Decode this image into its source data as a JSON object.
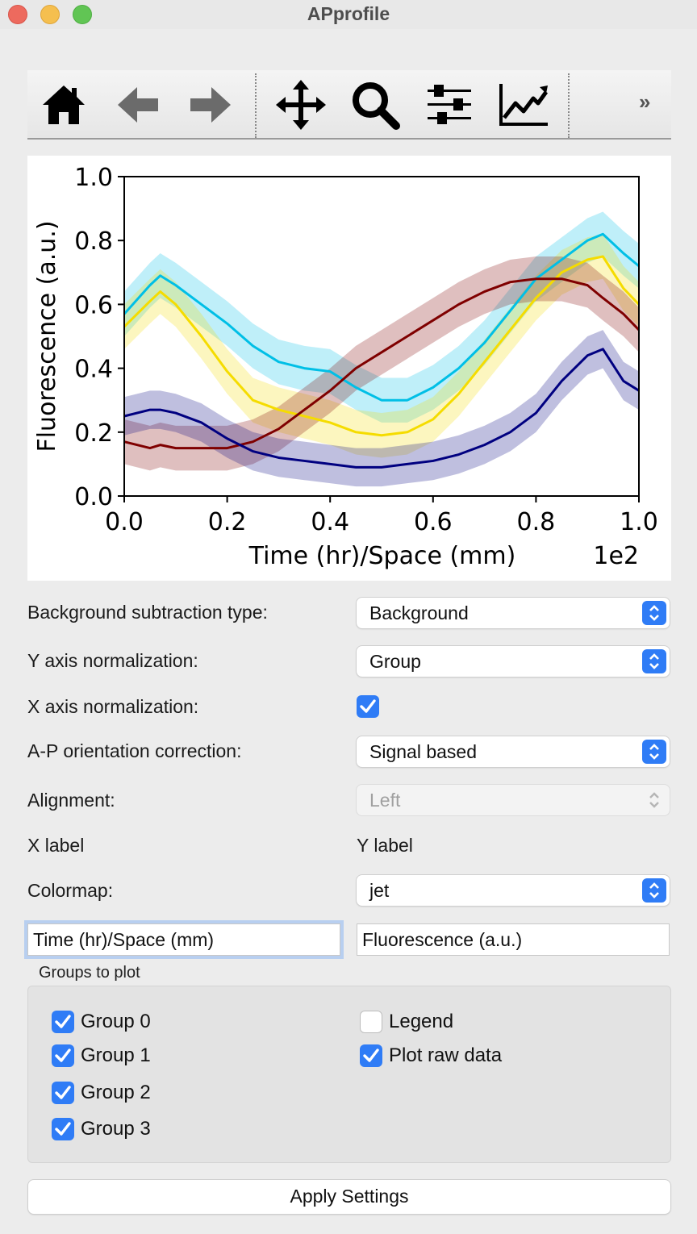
{
  "window": {
    "title": "APprofile"
  },
  "toolbar": {
    "buttons": [
      "home-icon",
      "back-arrow-icon",
      "forward-arrow-icon",
      "pan-icon",
      "zoom-icon",
      "configure-subplots-icon",
      "edit-axes-icon"
    ],
    "more_label": "»"
  },
  "chart_data": {
    "type": "line",
    "xlabel": "Time (hr)/Space (mm)",
    "ylabel": "Fluorescence (a.u.)",
    "x_offset_text": "1e2",
    "xlim": [
      0.0,
      1.0
    ],
    "ylim": [
      0.0,
      1.0
    ],
    "xticks": [
      "0.0",
      "0.2",
      "0.4",
      "0.6",
      "0.8",
      "1.0"
    ],
    "yticks": [
      "0.0",
      "0.2",
      "0.4",
      "0.6",
      "0.8",
      "1.0"
    ],
    "grid": false,
    "legend": false,
    "x": [
      0.0,
      0.05,
      0.07,
      0.1,
      0.15,
      0.2,
      0.25,
      0.3,
      0.35,
      0.4,
      0.45,
      0.5,
      0.55,
      0.6,
      0.65,
      0.7,
      0.75,
      0.8,
      0.85,
      0.9,
      0.93,
      0.97,
      1.0
    ],
    "series": [
      {
        "color": "#00bfe6",
        "band": 0.07,
        "values": [
          0.57,
          0.66,
          0.69,
          0.66,
          0.6,
          0.54,
          0.47,
          0.42,
          0.4,
          0.39,
          0.34,
          0.3,
          0.3,
          0.34,
          0.4,
          0.48,
          0.58,
          0.68,
          0.74,
          0.8,
          0.82,
          0.76,
          0.72
        ]
      },
      {
        "color": "#f5dc00",
        "band": 0.07,
        "values": [
          0.53,
          0.61,
          0.64,
          0.6,
          0.5,
          0.39,
          0.3,
          0.27,
          0.25,
          0.23,
          0.2,
          0.19,
          0.2,
          0.24,
          0.32,
          0.42,
          0.52,
          0.62,
          0.7,
          0.74,
          0.75,
          0.65,
          0.6
        ]
      },
      {
        "color": "#7f0000",
        "band": 0.07,
        "values": [
          0.17,
          0.15,
          0.16,
          0.15,
          0.15,
          0.15,
          0.17,
          0.21,
          0.27,
          0.33,
          0.4,
          0.45,
          0.5,
          0.55,
          0.6,
          0.64,
          0.67,
          0.68,
          0.68,
          0.66,
          0.62,
          0.57,
          0.52
        ]
      },
      {
        "color": "#000080",
        "band": 0.06,
        "values": [
          0.25,
          0.27,
          0.27,
          0.26,
          0.23,
          0.18,
          0.14,
          0.12,
          0.11,
          0.1,
          0.09,
          0.09,
          0.1,
          0.11,
          0.13,
          0.16,
          0.2,
          0.26,
          0.36,
          0.44,
          0.46,
          0.36,
          0.33
        ]
      }
    ]
  },
  "form": {
    "background_subtraction": {
      "label": "Background subtraction type:",
      "value": "Background"
    },
    "y_norm": {
      "label": "Y axis normalization:",
      "value": "Group"
    },
    "x_norm": {
      "label": "X axis normalization:",
      "checked": true
    },
    "ap_orientation": {
      "label": "A-P orientation correction:",
      "value": "Signal based"
    },
    "alignment": {
      "label": "Alignment:",
      "value": "Left",
      "disabled": true
    },
    "x_label": {
      "label": "X label",
      "value": "Time (hr)/Space (mm)"
    },
    "y_label": {
      "label": "Y label",
      "value": "Fluorescence (a.u.)"
    },
    "colormap": {
      "label": "Colormap:",
      "value": "jet"
    }
  },
  "groups": {
    "caption": "Groups to plot",
    "items": [
      {
        "label": "Group 0",
        "checked": true
      },
      {
        "label": "Group 1",
        "checked": true
      },
      {
        "label": "Group 2",
        "checked": true
      },
      {
        "label": "Group 3",
        "checked": true
      }
    ],
    "legend": {
      "label": "Legend",
      "checked": false
    },
    "raw_data": {
      "label": "Plot raw data",
      "checked": true
    }
  },
  "apply": {
    "label": "Apply Settings"
  }
}
